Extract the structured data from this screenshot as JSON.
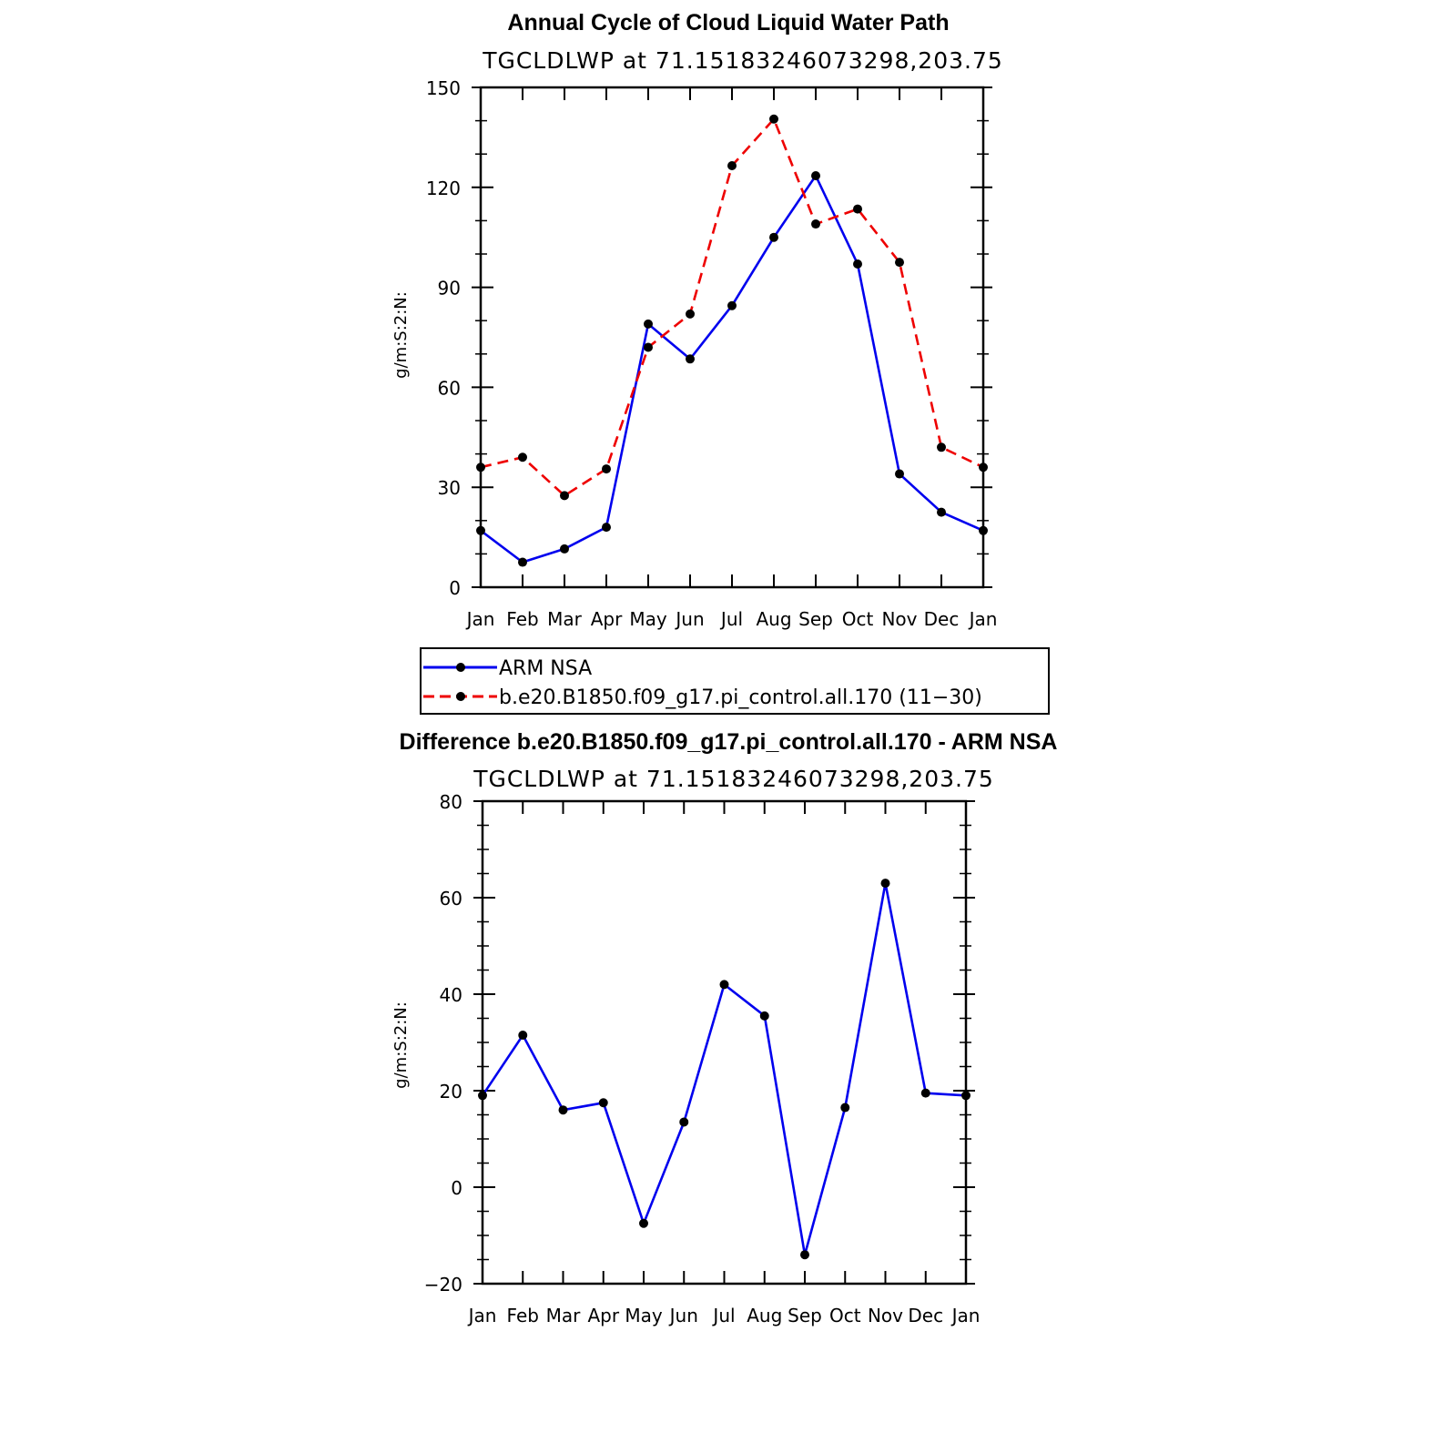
{
  "colors": {
    "obs": "#0000ee",
    "model": "#ee0000",
    "marker": "#000000",
    "axis": "#000000"
  },
  "chart_data": [
    {
      "type": "line",
      "title": "Annual Cycle of Cloud Liquid Water Path",
      "subtitle": "TGCLDLWP at 71.15183246073298,203.75",
      "ylabel": "g/m:S:2:N:",
      "xlabel": "",
      "categories": [
        "Jan",
        "Feb",
        "Mar",
        "Apr",
        "May",
        "Jun",
        "Jul",
        "Aug",
        "Sep",
        "Oct",
        "Nov",
        "Dec",
        "Jan"
      ],
      "ylim": [
        0,
        150
      ],
      "yticks": [
        0,
        30,
        60,
        90,
        120,
        150
      ],
      "ytick_labels": [
        "0",
        "30",
        "60",
        "90",
        "120",
        "150"
      ],
      "series": [
        {
          "name": "ARM NSA",
          "style": "solid",
          "color": "#0000ee",
          "values": [
            17,
            7.5,
            11.5,
            18,
            79,
            68.5,
            84.5,
            105,
            123.5,
            97,
            34,
            22.5,
            17
          ]
        },
        {
          "name": "b.e20.B1850.f09_g17.pi_control.all.170 (11−30)",
          "style": "dashed",
          "color": "#ee0000",
          "values": [
            36,
            39,
            27.5,
            35.5,
            72,
            82,
            126.5,
            140.5,
            109,
            113.5,
            97.5,
            42,
            36
          ]
        }
      ],
      "legend": "below"
    },
    {
      "type": "line",
      "title": "Difference b.e20.B1850.f09_g17.pi_control.all.170 - ARM NSA",
      "subtitle": "TGCLDLWP at 71.15183246073298,203.75",
      "ylabel": "g/m:S:2:N:",
      "xlabel": "",
      "categories": [
        "Jan",
        "Feb",
        "Mar",
        "Apr",
        "May",
        "Jun",
        "Jul",
        "Aug",
        "Sep",
        "Oct",
        "Nov",
        "Dec",
        "Jan"
      ],
      "ylim": [
        -20,
        80
      ],
      "yticks": [
        -20,
        0,
        20,
        40,
        60,
        80
      ],
      "ytick_labels": [
        "−20",
        "0",
        "20",
        "40",
        "60",
        "80"
      ],
      "series": [
        {
          "style": "solid",
          "color": "#0000ee",
          "values": [
            19,
            31.5,
            16,
            17.5,
            -7.5,
            13.5,
            42,
            35.5,
            -14,
            16.5,
            63,
            19.5,
            19
          ]
        }
      ]
    }
  ]
}
